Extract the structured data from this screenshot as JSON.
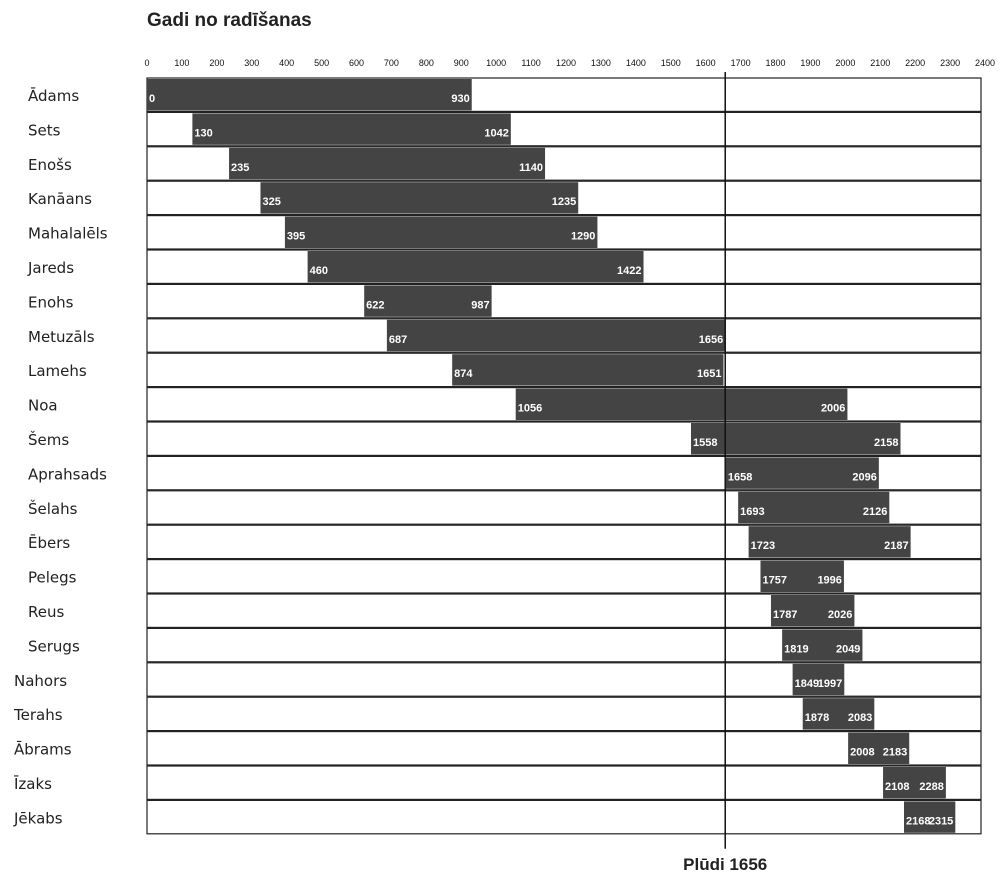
{
  "chart_data": {
    "type": "bar",
    "orientation": "horizontal-range",
    "title": "Gadi no radīšanas",
    "xlim": [
      0,
      2400
    ],
    "x_ticks": [
      "0",
      "100",
      "200",
      "300",
      "400",
      "500",
      "600",
      "700",
      "800",
      "900",
      "1000",
      "1100",
      "1200",
      "1300",
      "1400",
      "1500",
      "1600",
      "1700",
      "1800",
      "1900",
      "2000",
      "2100",
      "2200",
      "2300",
      "2400"
    ],
    "reference_line": {
      "value": 1656,
      "label": "Plūdi 1656"
    },
    "bar_color": "#444444",
    "grid": false,
    "rows": [
      {
        "name": "Ādams",
        "start": 0,
        "end": 930
      },
      {
        "name": "Sets",
        "start": 130,
        "end": 1042
      },
      {
        "name": "Enošs",
        "start": 235,
        "end": 1140
      },
      {
        "name": "Kanāans",
        "start": 325,
        "end": 1235
      },
      {
        "name": "Mahalalēls",
        "start": 395,
        "end": 1290
      },
      {
        "name": "Jareds",
        "start": 460,
        "end": 1422
      },
      {
        "name": "Enohs",
        "start": 622,
        "end": 987
      },
      {
        "name": "Metuzāls",
        "start": 687,
        "end": 1656
      },
      {
        "name": "Lamehs",
        "start": 874,
        "end": 1651
      },
      {
        "name": "Noa",
        "start": 1056,
        "end": 2006
      },
      {
        "name": "Šems",
        "start": 1558,
        "end": 2158
      },
      {
        "name": "Aprahsads",
        "start": 1658,
        "end": 2096
      },
      {
        "name": "Šelahs",
        "start": 1693,
        "end": 2126
      },
      {
        "name": "Ēbers",
        "start": 1723,
        "end": 2187
      },
      {
        "name": "Pelegs",
        "start": 1757,
        "end": 1996
      },
      {
        "name": "Reus",
        "start": 1787,
        "end": 2026
      },
      {
        "name": "Serugs",
        "start": 1819,
        "end": 2049
      },
      {
        "name": "Nahors",
        "start": 1849,
        "end": 1997
      },
      {
        "name": "Terahs",
        "start": 1878,
        "end": 2083
      },
      {
        "name": "Ābrams",
        "start": 2008,
        "end": 2183
      },
      {
        "name": "Īzaks",
        "start": 2108,
        "end": 2288
      },
      {
        "name": "Jēkabs",
        "start": 2168,
        "end": 2315
      }
    ]
  }
}
